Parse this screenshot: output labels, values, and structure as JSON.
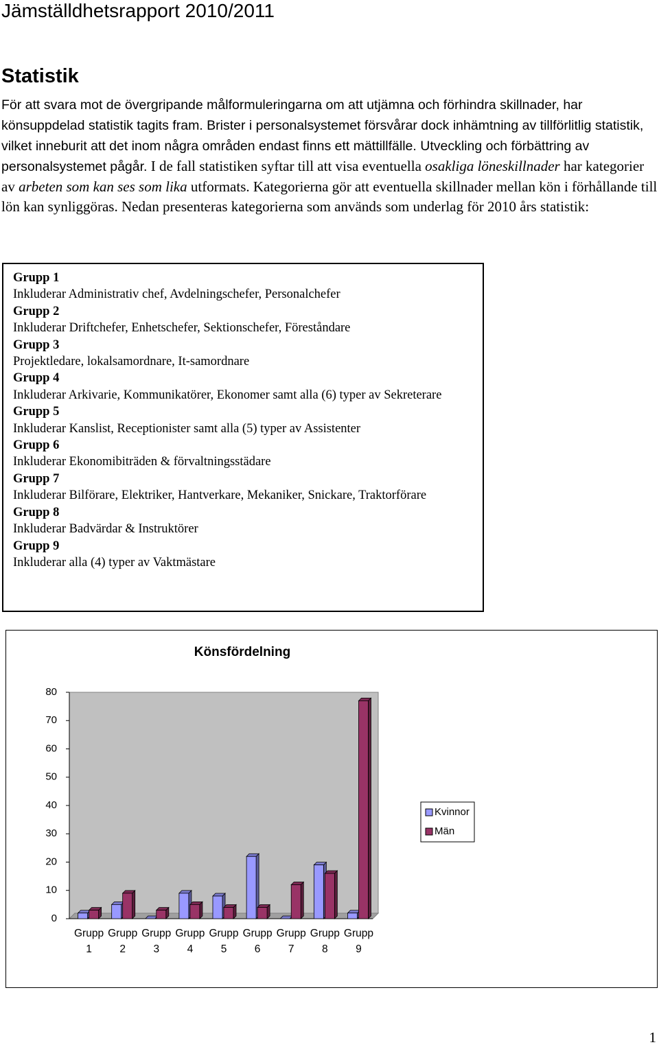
{
  "header": {
    "title": "Jämställdhetsrapport 2010/2011"
  },
  "section": {
    "heading": "Statistik",
    "paragraph": [
      "För att svara mot de övergripande målformuleringarna om att utjämna och förhindra skillnader, har könsuppdelad statistik tagits fram. Brister i personalsystemet försvårar dock inhämtning av tillförlitlig statistik, vilket inneburit att det inom några områden endast finns ett mättillfälle. Utveckling och förbättring av personalsystemet pågår.",
      " I de fall statistiken syftar till att visa eventuella ",
      "osakliga löneskillnader",
      " har kategorier av ",
      "arbeten som kan ses som lika",
      " utformats. Kategorierna gör att eventuella skillnader mellan kön i förhållande till lön kan synliggöras. Nedan presenteras kategorierna som används som underlag för 2010 års statistik:"
    ]
  },
  "groups": [
    {
      "title": "Grupp 1",
      "description": "Inkluderar Administrativ chef, Avdelningschefer, Personalchefer"
    },
    {
      "title": "Grupp 2",
      "description": "Inkluderar Driftchefer, Enhetschefer, Sektionschefer, Föreståndare"
    },
    {
      "title": "Grupp 3",
      "description": "Projektledare, lokalsamordnare, It-samordnare"
    },
    {
      "title": "Grupp 4",
      "description": "Inkluderar Arkivarie, Kommunikatörer, Ekonomer samt alla (6) typer av Sekreterare"
    },
    {
      "title": "Grupp 5",
      "description": "Inkluderar Kanslist, Receptionister samt alla (5) typer av Assistenter"
    },
    {
      "title": "Grupp 6",
      "description": "Inkluderar Ekonomibiträden & förvaltningsstädare"
    },
    {
      "title": "Grupp 7",
      "description": "Inkluderar Bilförare, Elektriker, Hantverkare, Mekaniker, Snickare, Traktorförare"
    },
    {
      "title": "Grupp 8",
      "description": "Inkluderar Badvärdar & Instruktörer"
    },
    {
      "title": "Grupp 9",
      "description": "Inkluderar alla (4) typer av Vaktmästare"
    }
  ],
  "chart_data": {
    "type": "bar",
    "title": "Könsfördelning",
    "categories": [
      "Grupp 1",
      "Grupp 2",
      "Grupp 3",
      "Grupp 4",
      "Grupp 5",
      "Grupp 6",
      "Grupp 7",
      "Grupp 8",
      "Grupp 9"
    ],
    "series": [
      {
        "name": "Kvinnor",
        "color": "#9999ff",
        "values": [
          2,
          5,
          0,
          9,
          8,
          22,
          0,
          19,
          2
        ]
      },
      {
        "name": "Män",
        "color": "#993366",
        "values": [
          3,
          9,
          3,
          5,
          4,
          4,
          12,
          16,
          77
        ]
      }
    ],
    "ylim": [
      0,
      80
    ],
    "yticks": [
      0,
      10,
      20,
      30,
      40,
      50,
      60,
      70,
      80
    ],
    "legend": "right"
  },
  "footer": {
    "page_number": "1"
  }
}
